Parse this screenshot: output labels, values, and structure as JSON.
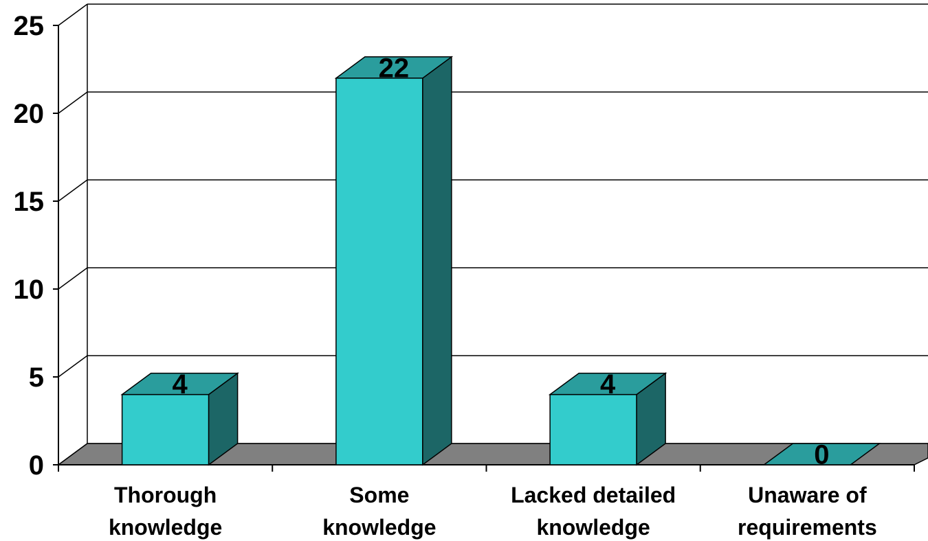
{
  "chart_data": {
    "type": "bar",
    "style": "3d-column",
    "categories": [
      [
        "Thorough",
        "knowledge"
      ],
      [
        "Some",
        "knowledge"
      ],
      [
        "Lacked detailed",
        "knowledge"
      ],
      [
        "Unaware of",
        "requirements"
      ]
    ],
    "values": [
      4,
      22,
      4,
      0
    ],
    "data_labels": [
      "4",
      "22",
      "4",
      "0"
    ],
    "y_ticks": [
      "0",
      "5",
      "10",
      "15",
      "20",
      "25"
    ],
    "ylim": [
      0,
      25
    ],
    "grid": true,
    "legend": "none",
    "title": "",
    "xlabel": "",
    "ylabel": ""
  },
  "colors": {
    "bar_front": "#33CCCC",
    "bar_top": "#2A9D9D",
    "bar_side": "#1C6666",
    "floor": "#808080",
    "gridline": "#000000"
  }
}
